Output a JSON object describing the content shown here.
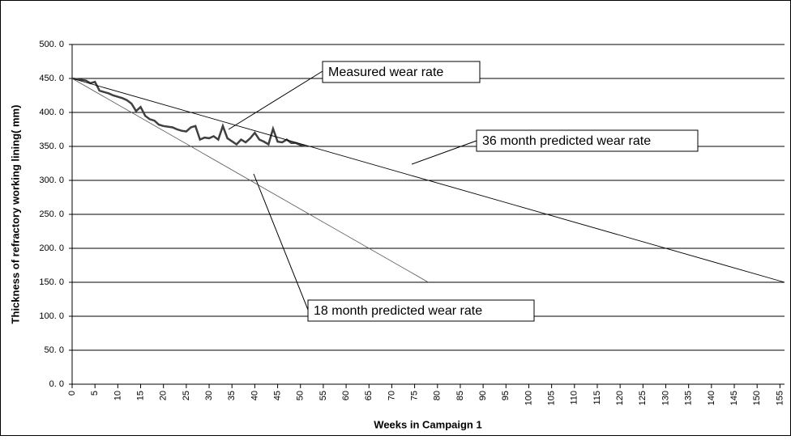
{
  "chart_data": {
    "type": "line",
    "x_label": "Weeks in Campaign 1",
    "y_label": "Thickness of  refractory working lining( mm)",
    "xlim": [
      0,
      156
    ],
    "ylim": [
      0,
      500
    ],
    "xticks": [
      0,
      5,
      10,
      15,
      20,
      25,
      30,
      35,
      40,
      45,
      50,
      55,
      60,
      65,
      70,
      75,
      80,
      85,
      90,
      95,
      100,
      105,
      110,
      115,
      120,
      125,
      130,
      135,
      140,
      145,
      150,
      155
    ],
    "yticks": [
      {
        "value": 0,
        "label": "0. 0"
      },
      {
        "value": 50,
        "label": "50. 0"
      },
      {
        "value": 100,
        "label": "100. 0"
      },
      {
        "value": 150,
        "label": "150. 0"
      },
      {
        "value": 200,
        "label": "200. 0"
      },
      {
        "value": 250,
        "label": "250. 0"
      },
      {
        "value": 300,
        "label": "300. 0"
      },
      {
        "value": 350,
        "label": "350. 0"
      },
      {
        "value": 400,
        "label": "400. 0"
      },
      {
        "value": 450,
        "label": "450. 0"
      },
      {
        "value": 500,
        "label": "500. 0"
      }
    ],
    "grid": true,
    "series": [
      {
        "name": "Measured wear rate",
        "color": "#404040",
        "x": [
          0,
          2,
          3,
          4,
          5,
          6,
          8,
          9,
          11,
          12,
          13,
          14,
          15,
          16,
          17,
          18,
          19,
          20,
          22,
          23,
          24,
          25,
          26,
          27,
          28,
          29,
          30,
          31,
          32,
          33,
          34,
          36,
          37,
          38,
          39,
          40,
          41,
          42,
          43,
          44,
          45,
          46,
          47,
          48,
          49,
          50,
          51
        ],
        "values": [
          450,
          448,
          447,
          443,
          445,
          432,
          428,
          425,
          421,
          418,
          413,
          402,
          408,
          395,
          390,
          388,
          382,
          380,
          378,
          375,
          373,
          372,
          378,
          380,
          360,
          363,
          362,
          365,
          360,
          380,
          362,
          353,
          360,
          356,
          362,
          370,
          360,
          357,
          353,
          376,
          357,
          356,
          360,
          355,
          355,
          352,
          351
        ]
      },
      {
        "name": "36 month predicted wear rate",
        "color": "#000000",
        "x": [
          0,
          156
        ],
        "values": [
          450,
          150
        ]
      },
      {
        "name": "18 month predicted wear rate",
        "color": "#555555",
        "x": [
          0,
          78
        ],
        "values": [
          450,
          150
        ]
      }
    ]
  }
}
